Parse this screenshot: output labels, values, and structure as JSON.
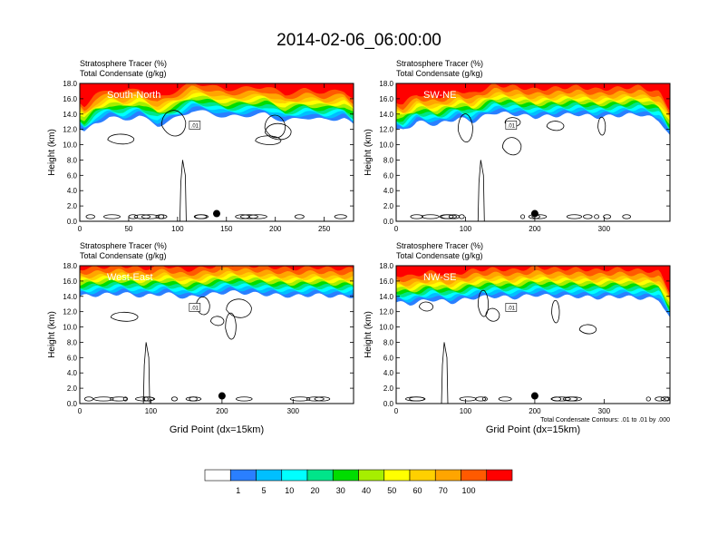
{
  "title": "2014-02-06_06:00:00",
  "colors": {
    "tracer_levels": [
      "#ffffff",
      "#2a7fff",
      "#00bfff",
      "#00ffff",
      "#00e58a",
      "#00dd00",
      "#a6ee00",
      "#ffff00",
      "#ffd000",
      "#ffa500",
      "#ff5a00",
      "#ff0000"
    ],
    "contour": "#000000",
    "marker": "#000000"
  },
  "colorbar": {
    "labels": [
      "1",
      "5",
      "10",
      "20",
      "30",
      "40",
      "50",
      "60",
      "70",
      "100"
    ]
  },
  "contour_note": "Total Condensate Contours: .01 to .01 by .000",
  "chart_data": [
    {
      "type": "heatmap",
      "title_lines": [
        "Stratosphere Tracer   (%)",
        "Total Condensate   (g/kg)"
      ],
      "section_label": "South-North",
      "ylabel": "Height (km)",
      "xlabel": "",
      "xlim": [
        0,
        280
      ],
      "ylim": [
        0,
        18
      ],
      "xticks": [
        0,
        50,
        100,
        150,
        200,
        250
      ],
      "yticks": [
        "0.0",
        "2.0",
        "4.0",
        "6.0",
        "8.0",
        "10.0",
        "12.0",
        "14.0",
        "16.0",
        "18.0"
      ],
      "tropopause_km": [
        [
          0,
          13.0
        ],
        [
          5,
          12.5
        ],
        [
          15,
          13.8
        ],
        [
          30,
          14.6
        ],
        [
          45,
          14.2
        ],
        [
          60,
          14.8
        ],
        [
          80,
          13.5
        ],
        [
          100,
          14.5
        ],
        [
          115,
          15.5
        ],
        [
          130,
          15.2
        ],
        [
          150,
          14.6
        ],
        [
          170,
          14.8
        ],
        [
          190,
          15.0
        ],
        [
          210,
          14.0
        ],
        [
          230,
          14.6
        ],
        [
          250,
          14.2
        ],
        [
          270,
          14.5
        ],
        [
          280,
          13.5
        ]
      ],
      "contour_label": ".01",
      "marker_x": 140,
      "marker_y_km": 1.0
    },
    {
      "type": "heatmap",
      "title_lines": [
        "Stratosphere Tracer   (%)",
        "Total Condensate   (g/kg)"
      ],
      "section_label": "SW-NE",
      "ylabel": "Height (km)",
      "xlabel": "",
      "xlim": [
        0,
        395
      ],
      "ylim": [
        0,
        18
      ],
      "xticks": [
        0,
        100,
        200,
        300
      ],
      "yticks": [
        "0.0",
        "2.0",
        "4.0",
        "6.0",
        "8.0",
        "10.0",
        "12.0",
        "14.0",
        "16.0",
        "18.0"
      ],
      "tropopause_km": [
        [
          0,
          13.0
        ],
        [
          10,
          12.8
        ],
        [
          30,
          14.0
        ],
        [
          60,
          13.6
        ],
        [
          90,
          14.5
        ],
        [
          110,
          14.0
        ],
        [
          140,
          15.2
        ],
        [
          170,
          15.0
        ],
        [
          200,
          14.6
        ],
        [
          230,
          14.8
        ],
        [
          260,
          15.0
        ],
        [
          290,
          14.6
        ],
        [
          320,
          14.8
        ],
        [
          350,
          15.0
        ],
        [
          380,
          14.2
        ],
        [
          395,
          12.0
        ]
      ],
      "contour_label": ".01",
      "marker_x": 200,
      "marker_y_km": 1.0
    },
    {
      "type": "heatmap",
      "title_lines": [
        "Stratosphere Tracer   (%)",
        "Total Condensate   (g/kg)"
      ],
      "section_label": "West-East",
      "ylabel": "Height (km)",
      "xlabel": "Grid Point (dx=15km)",
      "xlim": [
        0,
        385
      ],
      "ylim": [
        0,
        18
      ],
      "xticks": [
        0,
        100,
        200,
        300
      ],
      "yticks": [
        "0.0",
        "2.0",
        "4.0",
        "6.0",
        "8.0",
        "10.0",
        "12.0",
        "14.0",
        "16.0",
        "18.0"
      ],
      "tropopause_km": [
        [
          0,
          15.0
        ],
        [
          30,
          15.2
        ],
        [
          60,
          15.4
        ],
        [
          90,
          15.0
        ],
        [
          120,
          15.4
        ],
        [
          150,
          14.8
        ],
        [
          180,
          15.2
        ],
        [
          210,
          15.6
        ],
        [
          240,
          15.4
        ],
        [
          270,
          15.2
        ],
        [
          300,
          15.0
        ],
        [
          330,
          15.2
        ],
        [
          360,
          15.0
        ],
        [
          385,
          15.0
        ]
      ],
      "contour_label": ".01",
      "marker_x": 200,
      "marker_y_km": 1.0
    },
    {
      "type": "heatmap",
      "title_lines": [
        "Stratosphere Tracer   (%)",
        "Total Condensate   (g/kg)"
      ],
      "section_label": "NW-SE",
      "ylabel": "Height (km)",
      "xlabel": "Grid Point (dx=15km)",
      "xlim": [
        0,
        395
      ],
      "ylim": [
        0,
        18
      ],
      "xticks": [
        0,
        100,
        200,
        300
      ],
      "yticks": [
        "0.0",
        "2.0",
        "4.0",
        "6.0",
        "8.0",
        "10.0",
        "12.0",
        "14.0",
        "16.0",
        "18.0"
      ],
      "tropopause_km": [
        [
          0,
          14.2
        ],
        [
          20,
          14.0
        ],
        [
          50,
          14.6
        ],
        [
          80,
          14.2
        ],
        [
          110,
          14.8
        ],
        [
          140,
          15.0
        ],
        [
          170,
          14.8
        ],
        [
          200,
          15.2
        ],
        [
          230,
          15.0
        ],
        [
          260,
          15.0
        ],
        [
          290,
          14.8
        ],
        [
          320,
          15.0
        ],
        [
          350,
          14.8
        ],
        [
          380,
          14.6
        ],
        [
          395,
          12.0
        ]
      ],
      "contour_label": ".01",
      "marker_x": 200,
      "marker_y_km": 1.0
    }
  ]
}
